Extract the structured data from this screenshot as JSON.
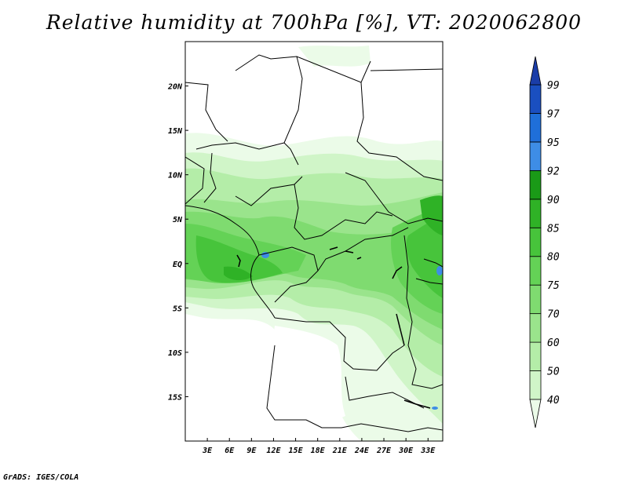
{
  "title": "Relative humidity at 700hPa [%], VT: 2020062800",
  "footer": "GrADS: IGES/COLA",
  "map": {
    "lon_range": [
      0,
      35
    ],
    "lat_range": [
      -20,
      25
    ],
    "lat_ticks": [
      "20N",
      "15N",
      "10N",
      "5N",
      "EQ",
      "5S",
      "10S",
      "15S"
    ],
    "lon_ticks": [
      "3E",
      "6E",
      "9E",
      "12E",
      "15E",
      "18E",
      "21E",
      "24E",
      "27E",
      "30E",
      "33E"
    ]
  },
  "colorbar": {
    "levels": [
      "40",
      "50",
      "60",
      "70",
      "75",
      "80",
      "85",
      "90",
      "92",
      "95",
      "97",
      "99"
    ],
    "colors": [
      "#ebfbe8",
      "#d0f5c8",
      "#b4eda8",
      "#9ae48c",
      "#7fdb70",
      "#64d256",
      "#47c43b",
      "#2fb226",
      "#1a9a17",
      "#3e8de6",
      "#1f6fd9",
      "#1a4fc0",
      "#1a3da8"
    ]
  }
}
